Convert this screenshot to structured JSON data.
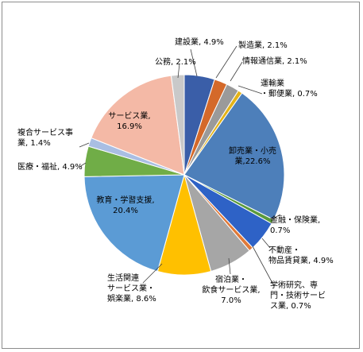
{
  "chart_data": {
    "type": "pie",
    "title": "",
    "start_angle_deg": 0,
    "direction": "clockwise",
    "slices": [
      {
        "name": "建設業",
        "value": 4.9,
        "color": "#3a5ea8",
        "label_lines": [
          "建設業, 4.9%"
        ]
      },
      {
        "name": "製造業",
        "value": 2.1,
        "color": "#d4692a",
        "label_lines": [
          "製造業, 2.1%"
        ]
      },
      {
        "name": "情報通信業",
        "value": 2.1,
        "color": "#9a9a9a",
        "label_lines": [
          "情報通信業, 2.1%"
        ]
      },
      {
        "name": "運輸業・郵便業",
        "value": 0.7,
        "color": "#e3b318",
        "label_lines": [
          "運輸業",
          "・郵便業, 0.7%"
        ]
      },
      {
        "name": "卸売業・小売業",
        "value": 22.6,
        "color": "#4d7fba",
        "label_lines": [
          "卸売業・小売",
          "業,22.6%"
        ]
      },
      {
        "name": "金融・保険業",
        "value": 0.7,
        "color": "#5a9a3c",
        "label_lines": [
          "金融・保険業,",
          "0.7%"
        ]
      },
      {
        "name": "不動産・物品賃貸業",
        "value": 4.9,
        "color": "#2e62c6",
        "label_lines": [
          "不動産・",
          "物品賃貸業, 4.9%"
        ]
      },
      {
        "name": "学術研究、専門・技術サービス業",
        "value": 0.7,
        "color": "#e07a3a",
        "label_lines": [
          "学術研究、専",
          "門・技術サービ",
          "ス業, 0.7%"
        ]
      },
      {
        "name": "宿泊業・飲食サービス業",
        "value": 7.0,
        "color": "#a6a6a6",
        "label_lines": [
          "宿泊業・",
          "飲食サービス業,",
          "7.0%"
        ]
      },
      {
        "name": "生活関連サービス業・娯楽業",
        "value": 8.6,
        "color": "#ffc000",
        "label_lines": [
          "生活関連",
          "サービス業・",
          "娯楽業, 8.6%"
        ]
      },
      {
        "name": "教育・学習支援",
        "value": 20.4,
        "color": "#5b9bd5",
        "label_lines": [
          "教育・学習支援,",
          "20.4%"
        ]
      },
      {
        "name": "医療・福祉",
        "value": 4.9,
        "color": "#70ad47",
        "label_lines": [
          "医療・福祉, 4.9%"
        ]
      },
      {
        "name": "複合サービス事業",
        "value": 1.4,
        "color": "#a9bee3",
        "label_lines": [
          "複合サービス事",
          "業, 1.4%"
        ]
      },
      {
        "name": "サービス業",
        "value": 16.9,
        "color": "#f4b9a6",
        "label_lines": [
          "サービス業,",
          "16.9%"
        ]
      },
      {
        "name": "公務",
        "value": 2.1,
        "color": "#c9c9c9",
        "label_lines": [
          "公務, 2.1%"
        ]
      }
    ]
  }
}
